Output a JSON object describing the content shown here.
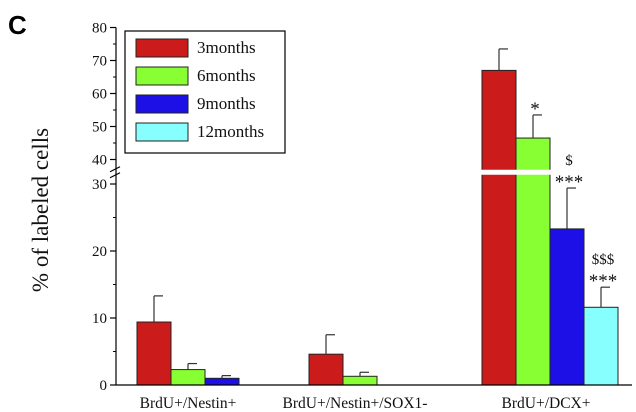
{
  "panel_label": "C",
  "chart_data": {
    "type": "bar",
    "ylabel": "% of labeled cells",
    "xlabel": "",
    "categories": [
      "BrdU+/Nestin+",
      "BrdU+/Nestin+/SOX1-",
      "BrdU+/DCX+"
    ],
    "axis_break": {
      "lower_range": [
        0,
        30
      ],
      "upper_range": [
        40,
        80
      ]
    },
    "yticks_lower": [
      "0",
      "10",
      "20",
      "30"
    ],
    "yticks_upper": [
      "40",
      "50",
      "60",
      "70",
      "80"
    ],
    "series": [
      {
        "name": "3months",
        "color": "#cc1b1b",
        "values": [
          9.4,
          4.6,
          67.0
        ],
        "errors": [
          3.9,
          2.9,
          6.5
        ]
      },
      {
        "name": "6months",
        "color": "#88ff33",
        "values": [
          2.3,
          1.3,
          46.5
        ],
        "errors": [
          0.9,
          0.6,
          7.0
        ]
      },
      {
        "name": "9months",
        "color": "#1c10e6",
        "values": [
          1.0,
          null,
          23.3
        ],
        "errors": [
          0.4,
          null,
          6.1
        ]
      },
      {
        "name": "12months",
        "color": "#88ffff",
        "values": [
          null,
          null,
          11.6
        ],
        "errors": [
          null,
          null,
          3.0
        ]
      }
    ],
    "annotations": [
      {
        "series": 1,
        "category": 2,
        "lines": [
          "*"
        ]
      },
      {
        "series": 2,
        "category": 2,
        "lines": [
          "$",
          "***"
        ]
      },
      {
        "series": 3,
        "category": 2,
        "lines": [
          "$$$",
          "***"
        ]
      }
    ],
    "legend_position": "top-left"
  }
}
